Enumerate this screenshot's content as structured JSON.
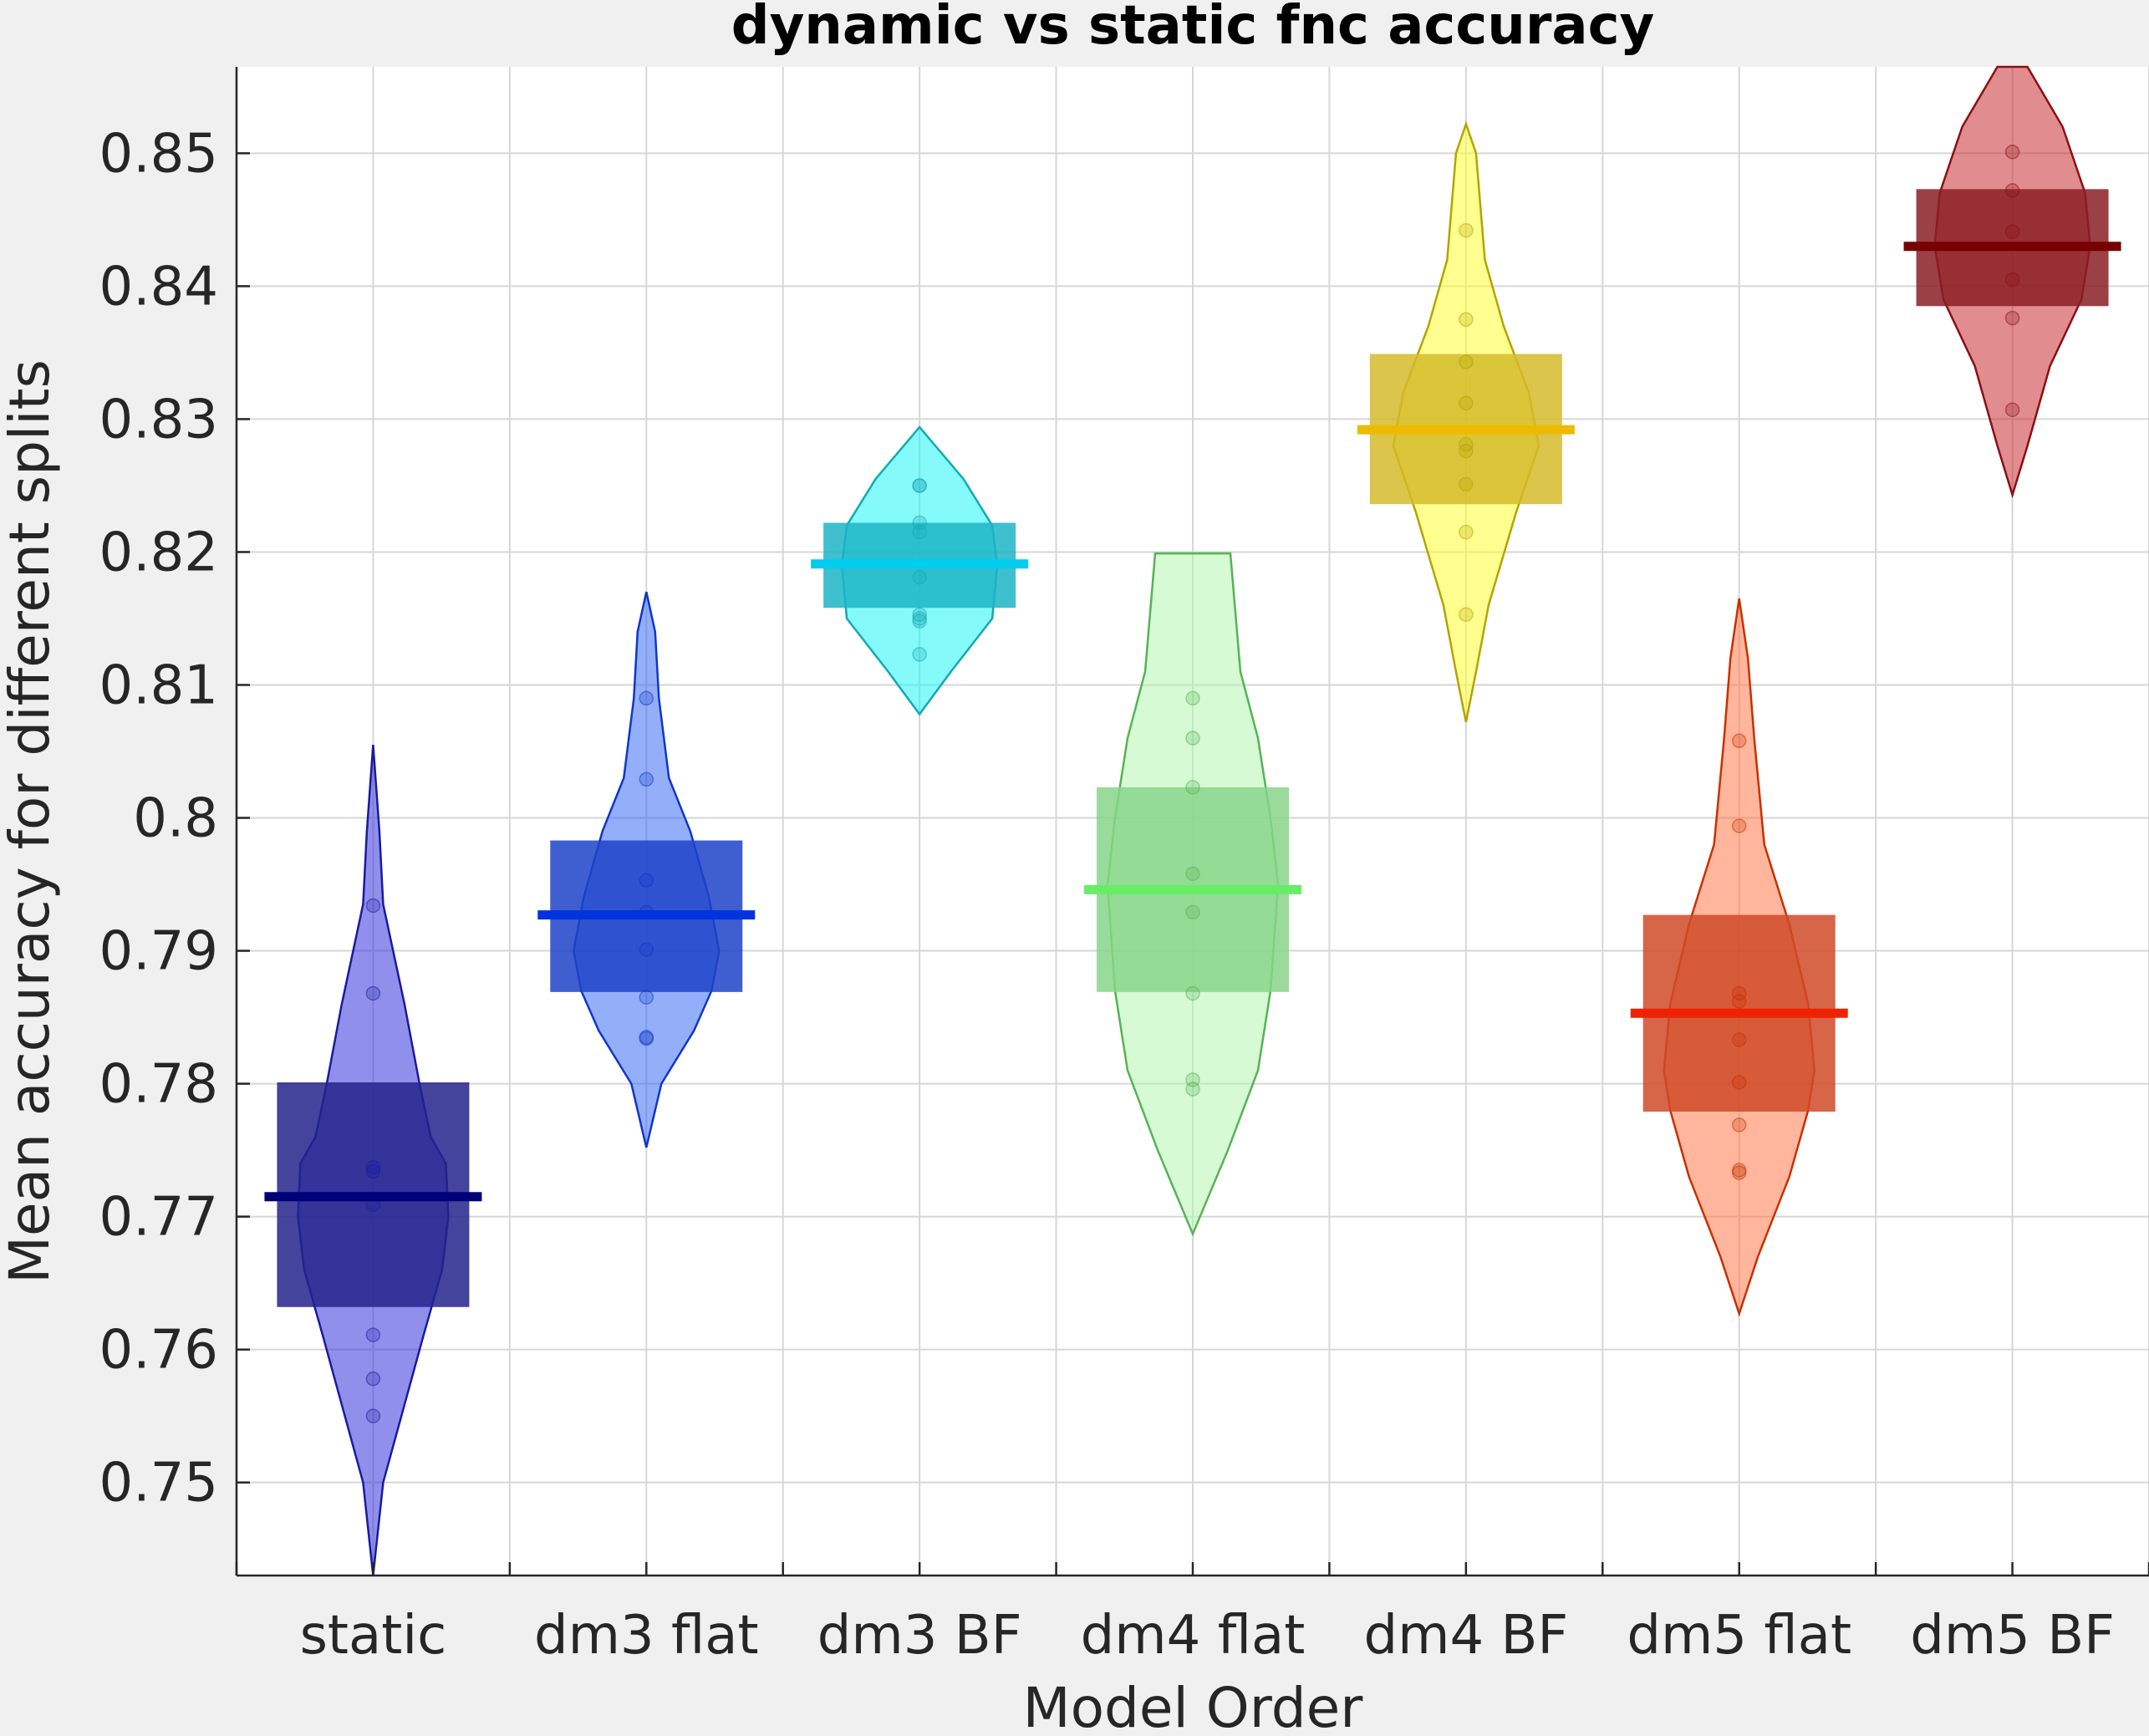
{
  "chart_data": {
    "type": "violin",
    "title": "dynamic vs static fnc accuracy",
    "xlabel": "Model Order",
    "ylabel": "Mean accuracy for different splits",
    "ylim": [
      0.743,
      0.8565
    ],
    "yticks": [
      0.75,
      0.76,
      0.77,
      0.78,
      0.79,
      0.8,
      0.81,
      0.82,
      0.83,
      0.84,
      0.85
    ],
    "ytick_labels": [
      "0.75",
      "0.76",
      "0.77",
      "0.78",
      "0.79",
      "0.8",
      "0.81",
      "0.82",
      "0.83",
      "0.84",
      "0.85"
    ],
    "grid": true,
    "categories": [
      "static",
      "dm3 flat",
      "dm3 BF",
      "dm4 flat",
      "dm4 BF",
      "dm5 flat",
      "dm5 BF"
    ],
    "series": [
      {
        "category": "static",
        "color": "#3434dc",
        "edge": "#1a1aa0",
        "median_color": "#00007a",
        "box_color": "#23238c",
        "median": 0.7715,
        "q1": 0.7632,
        "q3": 0.7801,
        "points": [
          0.7934,
          0.7868,
          0.7737,
          0.7734,
          0.7709,
          0.7611,
          0.7578,
          0.755
        ],
        "profile": [
          [
            0.743,
            0
          ],
          [
            0.75,
            0.08
          ],
          [
            0.761,
            0.4
          ],
          [
            0.766,
            0.55
          ],
          [
            0.77,
            0.6
          ],
          [
            0.774,
            0.58
          ],
          [
            0.776,
            0.46
          ],
          [
            0.78,
            0.37
          ],
          [
            0.786,
            0.25
          ],
          [
            0.7935,
            0.08
          ],
          [
            0.799,
            0.05
          ],
          [
            0.8055,
            0
          ]
        ]
      },
      {
        "category": "dm3 flat",
        "color": "#3a6ef5",
        "edge": "#1036c8",
        "median_color": "#0033dd",
        "box_color": "#1d43c8",
        "median": 0.7927,
        "q1": 0.7869,
        "q3": 0.7983,
        "points": [
          0.809,
          0.8029,
          0.7953,
          0.7929,
          0.7901,
          0.7865,
          0.7835,
          0.7834
        ],
        "profile": [
          [
            0.7752,
            0
          ],
          [
            0.78,
            0.12
          ],
          [
            0.784,
            0.38
          ],
          [
            0.787,
            0.52
          ],
          [
            0.79,
            0.58
          ],
          [
            0.794,
            0.5
          ],
          [
            0.799,
            0.35
          ],
          [
            0.803,
            0.18
          ],
          [
            0.809,
            0.1
          ],
          [
            0.814,
            0.07
          ],
          [
            0.817,
            0
          ]
        ]
      },
      {
        "category": "dm3 BF",
        "color": "#1ff5f5",
        "edge": "#12a9b5",
        "median_color": "#00ccee",
        "box_color": "#1cb5c5",
        "median": 0.8191,
        "q1": 0.8158,
        "q3": 0.8222,
        "points": [
          0.825,
          0.825,
          0.8222,
          0.8215,
          0.8181,
          0.8153,
          0.815,
          0.8148,
          0.8123
        ],
        "profile": [
          [
            0.8078,
            0
          ],
          [
            0.811,
            0.25
          ],
          [
            0.815,
            0.58
          ],
          [
            0.819,
            0.62
          ],
          [
            0.822,
            0.58
          ],
          [
            0.8255,
            0.35
          ],
          [
            0.8294,
            0
          ]
        ]
      },
      {
        "category": "dm4 flat",
        "color": "#b5f5b0",
        "edge": "#55b355",
        "median_color": "#66ee66",
        "box_color": "#88d58a",
        "median": 0.7946,
        "q1": 0.7869,
        "q3": 0.8023,
        "points": [
          0.809,
          0.806,
          0.8023,
          0.7958,
          0.7929,
          0.7868,
          0.7803,
          0.7796
        ],
        "profile": [
          [
            0.7687,
            0
          ],
          [
            0.775,
            0.28
          ],
          [
            0.781,
            0.52
          ],
          [
            0.787,
            0.62
          ],
          [
            0.795,
            0.68
          ],
          [
            0.8,
            0.62
          ],
          [
            0.806,
            0.52
          ],
          [
            0.811,
            0.38
          ],
          [
            0.8199,
            0.3
          ]
        ]
      },
      {
        "category": "dm4 BF",
        "color": "#ffff33",
        "edge": "#b5a300",
        "median_color": "#eebb00",
        "box_color": "#d5bb2a",
        "median": 0.8292,
        "q1": 0.8236,
        "q3": 0.8349,
        "points": [
          0.8442,
          0.8375,
          0.8343,
          0.8312,
          0.8281,
          0.8276,
          0.8251,
          0.8215,
          0.8153
        ],
        "profile": [
          [
            0.8072,
            0
          ],
          [
            0.811,
            0.08
          ],
          [
            0.816,
            0.18
          ],
          [
            0.823,
            0.4
          ],
          [
            0.828,
            0.58
          ],
          [
            0.832,
            0.5
          ],
          [
            0.837,
            0.3
          ],
          [
            0.842,
            0.15
          ],
          [
            0.85,
            0.08
          ],
          [
            0.8522,
            0
          ]
        ]
      },
      {
        "category": "dm5 flat",
        "color": "#ff7a4a",
        "edge": "#c83000",
        "median_color": "#ee2200",
        "box_color": "#d04a28",
        "median": 0.7853,
        "q1": 0.7779,
        "q3": 0.7927,
        "points": [
          0.8058,
          0.7994,
          0.7868,
          0.7862,
          0.7833,
          0.7801,
          0.7769,
          0.7735,
          0.7733
        ],
        "profile": [
          [
            0.7627,
            0
          ],
          [
            0.767,
            0.15
          ],
          [
            0.773,
            0.4
          ],
          [
            0.778,
            0.55
          ],
          [
            0.781,
            0.6
          ],
          [
            0.786,
            0.55
          ],
          [
            0.792,
            0.4
          ],
          [
            0.798,
            0.2
          ],
          [
            0.806,
            0.12
          ],
          [
            0.812,
            0.07
          ],
          [
            0.8165,
            0
          ]
        ]
      },
      {
        "category": "dm5 BF",
        "color": "#c83035",
        "edge": "#8a0f14",
        "median_color": "#770000",
        "box_color": "#8a1f24",
        "median": 0.843,
        "q1": 0.8385,
        "q3": 0.8473,
        "points": [
          0.8501,
          0.8472,
          0.8441,
          0.8405,
          0.8376,
          0.8307
        ],
        "profile": [
          [
            0.8243,
            0
          ],
          [
            0.828,
            0.12
          ],
          [
            0.834,
            0.3
          ],
          [
            0.839,
            0.55
          ],
          [
            0.843,
            0.62
          ],
          [
            0.847,
            0.58
          ],
          [
            0.852,
            0.4
          ],
          [
            0.8565,
            0.12
          ]
        ]
      }
    ]
  }
}
